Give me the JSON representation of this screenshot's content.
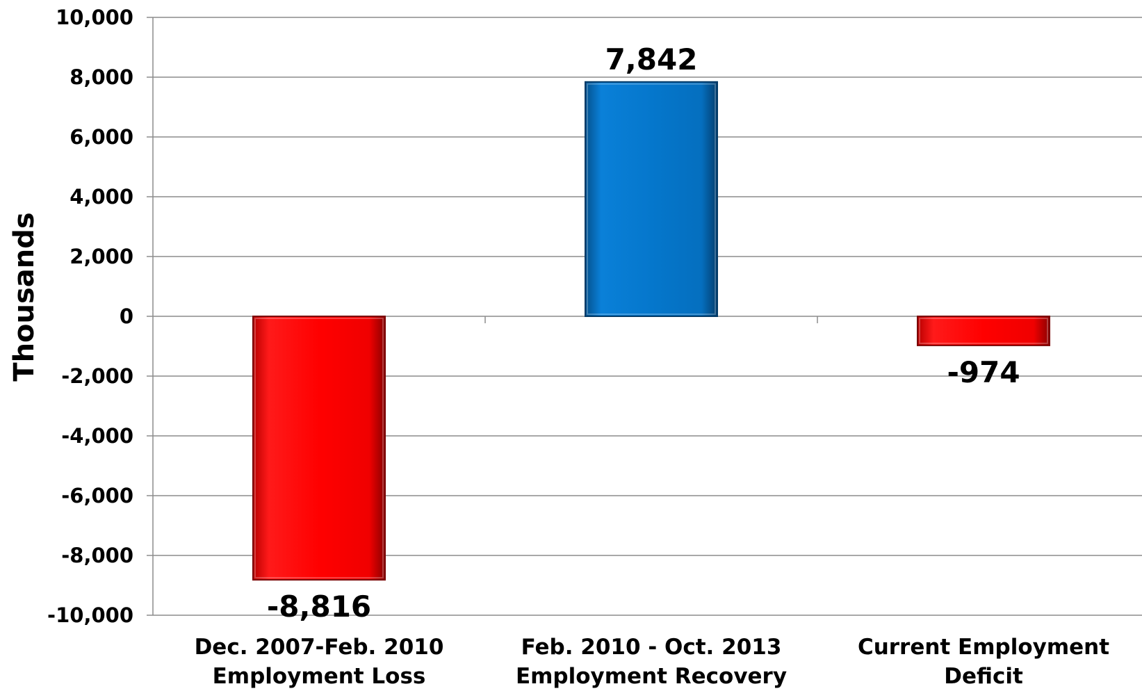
{
  "chart_data": {
    "type": "bar",
    "title": "",
    "xlabel": "",
    "ylabel": "Thousands",
    "ylim": [
      -10000,
      10000
    ],
    "y_ticks": [
      10000,
      8000,
      6000,
      4000,
      2000,
      0,
      -2000,
      -4000,
      -6000,
      -8000,
      -10000
    ],
    "y_tick_labels": [
      "10,000",
      "8,000",
      "6,000",
      "4,000",
      "2,000",
      "0",
      "-2,000",
      "-4,000",
      "-6,000",
      "-8,000",
      "-10,000"
    ],
    "grid": true,
    "legend": "none",
    "categories": [
      [
        "Dec. 2007-Feb. 2010",
        "Employment Loss"
      ],
      [
        "Feb. 2010 - Oct. 2013",
        "Employment Recovery"
      ],
      [
        "Current Employment",
        "Deficit"
      ]
    ],
    "values": [
      -8816,
      7842,
      -974
    ],
    "data_labels": [
      "-8,816",
      "7,842",
      "-974"
    ],
    "bar_colors": [
      "#ff0000",
      "#0577cc",
      "#ff0000"
    ]
  }
}
